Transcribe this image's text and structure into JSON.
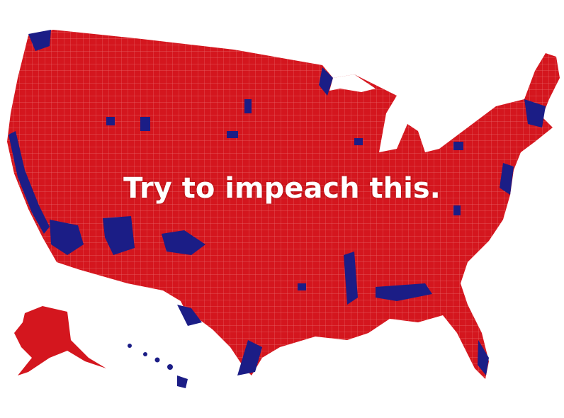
{
  "caption": "Try to impeach this.",
  "map": {
    "subject": "US county-level election map",
    "colors": {
      "red_counties": "#d4161e",
      "blue_counties": "#1b1d86",
      "county_borders": "#f08a8a",
      "background": "#ffffff"
    }
  }
}
